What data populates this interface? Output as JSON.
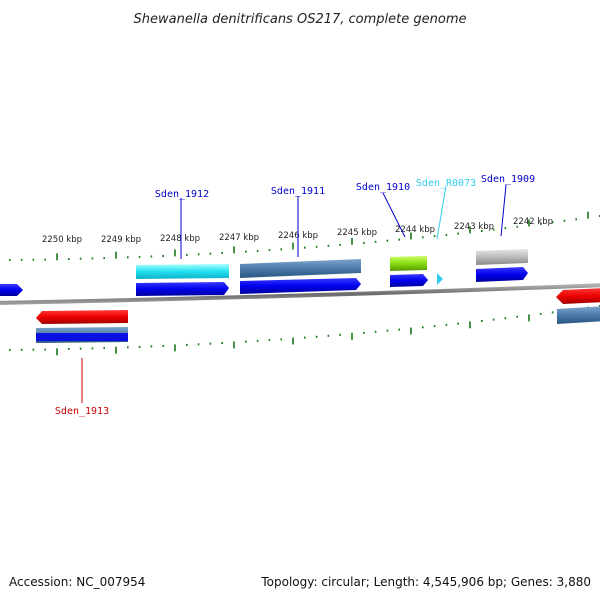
{
  "title": "Shewanella denitrificans OS217, complete genome",
  "footer": {
    "accession": "Accession: NC_007954",
    "summary": "Topology: circular; Length: 4,545,906 bp; Genes: 3,880"
  },
  "colors": {
    "backbone": "#808080",
    "tick": "#1a7a1a",
    "forward_cds": "#0000ee",
    "reverse_cds": "#ee0000",
    "label_forward": "#0000cc",
    "label_reverse": "#cc0000",
    "label_rna": "#33ccee"
  },
  "scale_labels": [
    "2250 kbp",
    "2249 kbp",
    "2248 kbp",
    "2247 kbp",
    "2246 kbp",
    "2245 kbp",
    "2244 kbp",
    "2243 kbp",
    "2242 kbp"
  ],
  "genes": [
    {
      "name": "Sden_1912",
      "strand": "+"
    },
    {
      "name": "Sden_1911",
      "strand": "+"
    },
    {
      "name": "Sden_1910",
      "strand": "+"
    },
    {
      "name": "Sden_R0073",
      "strand": "+"
    },
    {
      "name": "Sden_1909",
      "strand": "+"
    },
    {
      "name": "Sden_1913",
      "strand": "-"
    }
  ]
}
